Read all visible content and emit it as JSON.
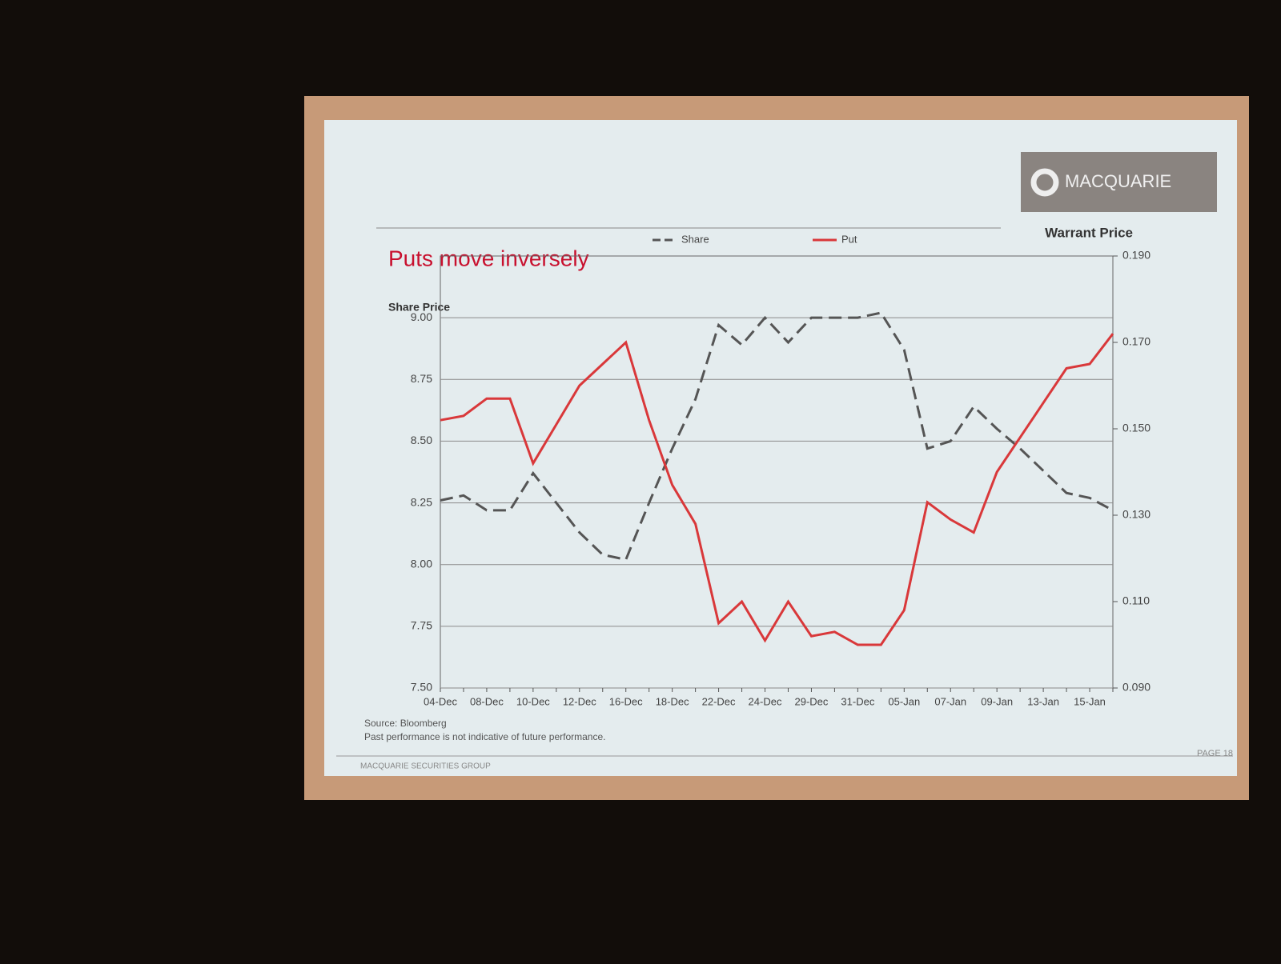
{
  "chart_data": {
    "type": "line",
    "brand": "MACQUARIE",
    "title": "Puts move inversely",
    "y_label": "Share Price",
    "y2_label": "Warrant Price",
    "categories": [
      "04-Dec",
      null,
      "08-Dec",
      null,
      "10-Dec",
      null,
      "12-Dec",
      null,
      "16-Dec",
      null,
      "18-Dec",
      null,
      "22-Dec",
      null,
      "24-Dec",
      null,
      "29-Dec",
      null,
      "31-Dec",
      null,
      "05-Jan",
      null,
      "07-Jan",
      null,
      "09-Jan",
      null,
      "13-Jan",
      null,
      "15-Jan",
      null
    ],
    "series": [
      {
        "name": "Share",
        "color": "#555555",
        "dashed": true,
        "axis": "y",
        "values": [
          8.26,
          8.28,
          8.22,
          8.22,
          8.37,
          8.25,
          8.13,
          8.04,
          8.02,
          8.25,
          8.47,
          8.67,
          8.97,
          8.89,
          9.0,
          8.9,
          9.0,
          9.0,
          9.0,
          9.02,
          8.87,
          8.47,
          8.5,
          8.64,
          8.55,
          8.47,
          8.38,
          8.29,
          8.27,
          8.22
        ]
      },
      {
        "name": "Put",
        "color": "#d9383a",
        "dashed": false,
        "axis": "y2",
        "values": [
          0.152,
          0.153,
          0.157,
          0.157,
          0.142,
          0.151,
          0.16,
          0.165,
          0.17,
          0.152,
          0.137,
          0.128,
          0.105,
          0.11,
          0.101,
          0.11,
          0.102,
          0.103,
          0.1,
          0.1,
          0.108,
          0.133,
          0.129,
          0.126,
          0.14,
          0.148,
          0.156,
          0.164,
          0.165,
          0.172
        ]
      }
    ],
    "ylim": [
      7.5,
      9.25
    ],
    "yticks": [
      {
        "value": 7.5,
        "label": "7.50"
      },
      7.75,
      {
        "value": 8.0,
        "label": "8.00"
      },
      8.25,
      {
        "value": 8.5,
        "label": "8.50"
      },
      8.75,
      {
        "value": 9.0,
        "label": "9.00"
      }
    ],
    "y2lim": [
      0.09,
      0.19
    ],
    "y2ticks": [
      {
        "value": 0.09,
        "label": "0.090"
      },
      {
        "value": 0.11,
        "label": "0.110"
      },
      {
        "value": 0.13,
        "label": "0.130"
      },
      {
        "value": 0.15,
        "label": "0.150"
      },
      {
        "value": 0.17,
        "label": "0.170"
      },
      {
        "value": 0.19,
        "label": "0.190"
      }
    ],
    "grid": true,
    "legend": "top",
    "source": "Source: Bloomberg",
    "footnote": "Past performance is not indicative of future performance.",
    "footer": "MACQUARIE SECURITIES GROUP",
    "page": "PAGE 18"
  }
}
